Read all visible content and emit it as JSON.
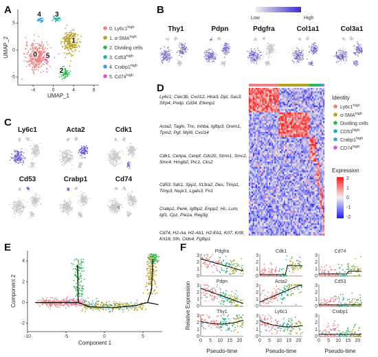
{
  "panels": {
    "A": "A",
    "B": "B",
    "C": "C",
    "D": "D",
    "E": "E",
    "F": "F"
  },
  "panelA": {
    "xlabel": "UMAP_1",
    "ylabel": "UMAP_2",
    "xticks": [
      "-4",
      "0",
      "4",
      "8"
    ],
    "yticks": [
      "5",
      "0",
      "-5"
    ],
    "cluster_ids": [
      "0",
      "1",
      "2",
      "3",
      "4",
      "5"
    ],
    "legend": [
      {
        "label": "0. Ly6c1",
        "sup": "high",
        "color": "#f08080"
      },
      {
        "label": "1. α-SMA",
        "sup": "high",
        "color": "#b5a020"
      },
      {
        "label": "2. Dividing cells",
        "sup": "",
        "color": "#2db84b"
      },
      {
        "label": "3. Cd53",
        "sup": "high",
        "color": "#20b2aa"
      },
      {
        "label": "4. Crabp1",
        "sup": "high",
        "color": "#3aa0e0"
      },
      {
        "label": "5. Cd74",
        "sup": "high",
        "color": "#e04fd0"
      }
    ]
  },
  "panelB": {
    "low": "Low",
    "high": "High",
    "genes": [
      "Thy1",
      "Pdpn",
      "Pdgfra",
      "Col1a1",
      "Col3a1"
    ]
  },
  "panelC": {
    "genes": [
      "Ly6c1",
      "Acta2",
      "Cdk1",
      "Cd53",
      "Crabp1",
      "Cd74"
    ]
  },
  "panelD": {
    "gene_blocks": [
      "Ly6c1, Clec3b, Cxcl12, Htra3, Dpt, Sas3, Sfrp4, Prelp, Cd34, Efemp1",
      "Acta2, Tagln, Tnc, Inhba, Igfbp3, Grem1, Tpm2, Pgf, Myl9, Cxcl14",
      "Cdk1, Cenpa, Cenpf, Cdc20, Stmn1, Smc2, Smc4, Hmgb2, Prc1, Cks2",
      "Cd53, Sdc1, Spp1, Il13ra2, Des, Timp1, Timp3, Nupr1, Lgals3, Fn1",
      "Crabp1, Penk, Igfbp2, Enpp2, Hc, Lum, Igf1, Cpz, Pla1a, Reg3g",
      "Cd74, H2-Aa, H2-Ab1, H2-Eb1, Krt7, Krt8, Krt18, Sfn, Cldn4, Fgfbp1"
    ],
    "identity_title": "Identity",
    "identity": [
      {
        "label": "Ly6c1",
        "sup": "high",
        "color": "#f08080"
      },
      {
        "label": "α-SMA",
        "sup": "high",
        "color": "#b5a020"
      },
      {
        "label": "Dividing cells",
        "sup": "",
        "color": "#2db84b"
      },
      {
        "label": "CD53",
        "sup": "high",
        "color": "#20b2aa"
      },
      {
        "label": "Crabp1",
        "sup": "high",
        "color": "#3aa0e0"
      },
      {
        "label": "CD74",
        "sup": "high",
        "color": "#e04fd0"
      }
    ],
    "expression_title": "Expression",
    "expression_ticks": [
      "2",
      "1",
      "0",
      "-1",
      "-2"
    ]
  },
  "panelE": {
    "xlabel": "Component 1",
    "ylabel": "Component 2",
    "xticks": [
      "-10",
      "-5",
      "0",
      "5"
    ],
    "yticks": [
      "4",
      "2",
      "0",
      "-2"
    ]
  },
  "panelF": {
    "ylabel": "Relative Expression",
    "xlabel": "Pseudo-time",
    "genes": [
      "Pdgfra",
      "Cdk1",
      "Cd74",
      "Pdpn",
      "Acta2",
      "Cd53",
      "Thy1",
      "Ly6c1",
      "Crabp1"
    ],
    "yticks": [
      "3",
      "2",
      "1",
      "0"
    ],
    "xticks": [
      "0",
      "5",
      "10",
      "15",
      "20"
    ]
  },
  "colors": {
    "c0": "#f08080",
    "c1": "#b5a020",
    "c2": "#2db84b",
    "c3": "#20b2aa",
    "c4": "#3aa0e0",
    "c5": "#e04fd0",
    "feature": "#5b4fd6",
    "grey": "#c8c8c8"
  }
}
